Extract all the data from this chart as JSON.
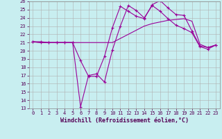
{
  "xlabel": "Windchill (Refroidissement éolien,°C)",
  "background_color": "#c8eef0",
  "grid_color": "#b0b0b0",
  "line_color": "#990099",
  "xlim": [
    -0.5,
    23.5
  ],
  "ylim": [
    13,
    26
  ],
  "xticks": [
    0,
    1,
    2,
    3,
    4,
    5,
    6,
    7,
    8,
    9,
    10,
    11,
    12,
    13,
    14,
    15,
    16,
    17,
    18,
    19,
    20,
    21,
    22,
    23
  ],
  "yticks": [
    13,
    14,
    15,
    16,
    17,
    18,
    19,
    20,
    21,
    22,
    23,
    24,
    25,
    26
  ],
  "line1_x": [
    0,
    1,
    2,
    3,
    4,
    5,
    6,
    7,
    8,
    9,
    10,
    11,
    12,
    13,
    14,
    15,
    16,
    17,
    18,
    19,
    20,
    21,
    22,
    23
  ],
  "line1_y": [
    21.1,
    21.1,
    21.0,
    21.0,
    21.0,
    21.0,
    18.8,
    16.9,
    16.9,
    19.3,
    22.8,
    25.4,
    24.8,
    24.2,
    23.9,
    25.6,
    26.1,
    25.2,
    24.4,
    24.3,
    22.4,
    20.6,
    20.4,
    20.7
  ],
  "line2_x": [
    0,
    1,
    2,
    3,
    4,
    5,
    6,
    7,
    8,
    9,
    10,
    11,
    12,
    13,
    14,
    15,
    16,
    17,
    18,
    19,
    20,
    21,
    22,
    23
  ],
  "line2_y": [
    21.1,
    21.0,
    21.0,
    21.0,
    21.0,
    21.0,
    13.2,
    17.0,
    17.2,
    16.2,
    20.1,
    23.0,
    25.5,
    24.9,
    24.0,
    25.5,
    24.8,
    23.9,
    23.1,
    22.7,
    22.2,
    20.5,
    20.2,
    20.7
  ],
  "line3_x": [
    0,
    1,
    2,
    3,
    4,
    5,
    6,
    7,
    8,
    9,
    10,
    11,
    12,
    13,
    14,
    15,
    16,
    17,
    18,
    19,
    20,
    21,
    22,
    23
  ],
  "line3_y": [
    21.1,
    21.0,
    21.0,
    21.0,
    21.0,
    21.0,
    21.0,
    21.0,
    21.0,
    21.0,
    21.0,
    21.5,
    22.0,
    22.5,
    23.0,
    23.3,
    23.5,
    23.7,
    23.8,
    23.9,
    23.6,
    20.8,
    20.4,
    20.7
  ],
  "marker": "+",
  "marker_size": 3,
  "linewidth": 0.8,
  "tick_fontsize": 5,
  "xlabel_fontsize": 6,
  "fig_width": 3.2,
  "fig_height": 2.0,
  "dpi": 100
}
